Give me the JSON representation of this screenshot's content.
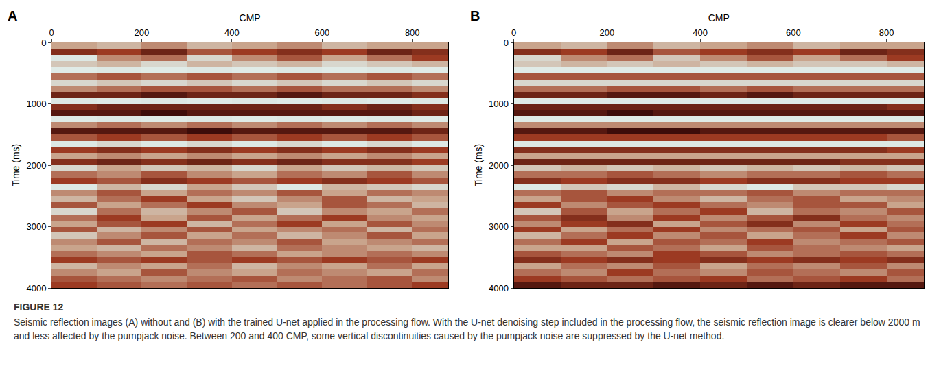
{
  "chart_data": [
    {
      "type": "heatmap",
      "panel": "A",
      "xlabel": "CMP",
      "ylabel": "Time (ms)",
      "xlim": [
        0,
        880
      ],
      "ylim": [
        4000,
        0
      ],
      "xticks": [
        0,
        200,
        400,
        600,
        800
      ],
      "yticks": [
        0,
        1000,
        2000,
        3000,
        4000
      ],
      "zlim": [
        -1,
        1
      ],
      "x": [
        50,
        150,
        250,
        350,
        450,
        550,
        650,
        750,
        850
      ],
      "y": [
        50,
        150,
        250,
        350,
        450,
        550,
        650,
        750,
        850,
        950,
        1050,
        1150,
        1250,
        1350,
        1450,
        1550,
        1650,
        1750,
        1850,
        1950,
        2050,
        2150,
        2250,
        2350,
        2450,
        2550,
        2650,
        2750,
        2850,
        2950,
        3050,
        3150,
        3250,
        3350,
        3450,
        3550,
        3650,
        3750,
        3850,
        3950
      ],
      "z": [
        [
          0.2,
          0.1,
          0.3,
          0.1,
          0.2,
          0.3,
          0.1,
          0.2,
          0.2
        ],
        [
          0.7,
          0.6,
          0.8,
          0.5,
          0.6,
          0.7,
          0.6,
          0.8,
          0.7
        ],
        [
          -0.2,
          0.3,
          0.4,
          -0.1,
          0.3,
          0.5,
          0.2,
          0.4,
          0.6
        ],
        [
          0.0,
          0.1,
          -0.1,
          0.1,
          0.0,
          0.1,
          -0.1,
          0.0,
          0.1
        ],
        [
          -0.3,
          -0.2,
          -0.3,
          -0.2,
          -0.3,
          -0.2,
          -0.3,
          -0.2,
          -0.3
        ],
        [
          0.4,
          0.5,
          0.4,
          0.5,
          0.4,
          0.5,
          0.4,
          0.5,
          0.4
        ],
        [
          -0.1,
          0.0,
          -0.1,
          0.0,
          -0.1,
          0.0,
          -0.1,
          0.0,
          -0.1
        ],
        [
          0.3,
          0.4,
          0.5,
          0.5,
          0.4,
          0.5,
          0.4,
          0.4,
          0.3
        ],
        [
          0.8,
          0.8,
          0.9,
          0.8,
          0.8,
          0.9,
          0.8,
          0.8,
          0.7
        ],
        [
          -0.2,
          -0.3,
          -0.2,
          -0.3,
          -0.2,
          -0.3,
          -0.2,
          -0.3,
          -0.2
        ],
        [
          0.7,
          0.8,
          0.8,
          0.8,
          0.8,
          0.8,
          0.7,
          0.8,
          0.7
        ],
        [
          0.9,
          0.9,
          1.0,
          0.9,
          0.9,
          0.9,
          0.9,
          0.9,
          0.8
        ],
        [
          -0.3,
          -0.2,
          -0.3,
          -0.2,
          -0.3,
          -0.2,
          -0.3,
          -0.2,
          -0.3
        ],
        [
          0.3,
          0.4,
          0.3,
          0.4,
          0.3,
          0.4,
          0.3,
          0.4,
          0.3
        ],
        [
          0.9,
          0.9,
          0.9,
          1.0,
          0.9,
          0.9,
          0.9,
          0.9,
          0.8
        ],
        [
          0.5,
          0.6,
          0.5,
          0.6,
          0.5,
          0.6,
          0.5,
          0.6,
          0.5
        ],
        [
          -0.2,
          -0.1,
          -0.2,
          -0.1,
          -0.2,
          -0.1,
          -0.2,
          -0.1,
          -0.2
        ],
        [
          0.6,
          0.7,
          0.6,
          0.7,
          0.6,
          0.7,
          0.6,
          0.7,
          0.6
        ],
        [
          0.2,
          0.3,
          0.2,
          0.3,
          0.2,
          0.3,
          0.2,
          0.3,
          0.2
        ],
        [
          0.7,
          0.8,
          0.7,
          0.8,
          0.7,
          0.8,
          0.7,
          0.7,
          0.6
        ],
        [
          -0.1,
          0.2,
          0.0,
          0.1,
          -0.1,
          0.2,
          0.0,
          0.1,
          0.0
        ],
        [
          0.4,
          0.3,
          0.5,
          0.3,
          0.2,
          0.4,
          0.3,
          0.5,
          0.3
        ],
        [
          0.6,
          0.5,
          0.7,
          0.6,
          0.5,
          0.6,
          0.7,
          0.6,
          0.5
        ],
        [
          -0.2,
          0.1,
          -0.1,
          0.2,
          0.0,
          -0.2,
          0.1,
          0.0,
          -0.1
        ],
        [
          0.3,
          0.5,
          0.2,
          0.4,
          0.3,
          0.5,
          0.2,
          0.4,
          0.3
        ],
        [
          0.1,
          0.4,
          0.6,
          0.2,
          0.0,
          0.3,
          0.5,
          0.1,
          0.2
        ],
        [
          0.5,
          0.2,
          0.4,
          0.6,
          0.3,
          0.2,
          0.5,
          0.4,
          0.1
        ],
        [
          -0.1,
          0.4,
          0.1,
          0.3,
          0.5,
          0.0,
          0.3,
          0.2,
          0.4
        ],
        [
          0.4,
          0.6,
          0.2,
          0.5,
          0.2,
          0.4,
          0.6,
          0.3,
          0.2
        ],
        [
          0.2,
          0.5,
          0.6,
          0.1,
          0.4,
          0.6,
          0.2,
          0.5,
          0.3
        ],
        [
          0.5,
          0.1,
          0.3,
          0.5,
          0.2,
          0.3,
          0.4,
          0.1,
          0.4
        ],
        [
          0.0,
          0.3,
          0.5,
          0.2,
          0.4,
          0.1,
          0.3,
          0.5,
          0.2
        ],
        [
          0.3,
          0.5,
          0.1,
          0.4,
          0.3,
          0.5,
          0.2,
          0.3,
          0.4
        ],
        [
          0.2,
          0.1,
          0.4,
          0.3,
          0.1,
          0.4,
          0.3,
          0.2,
          0.1
        ],
        [
          0.4,
          0.3,
          0.2,
          0.5,
          0.4,
          0.2,
          0.3,
          0.4,
          0.3
        ],
        [
          0.6,
          0.5,
          0.6,
          0.5,
          0.6,
          0.5,
          0.6,
          0.5,
          0.6
        ],
        [
          0.1,
          0.3,
          0.2,
          0.4,
          0.1,
          0.3,
          0.2,
          0.4,
          0.2
        ],
        [
          0.3,
          0.2,
          0.5,
          0.3,
          0.2,
          0.4,
          0.3,
          0.2,
          0.4
        ],
        [
          0.5,
          0.4,
          0.3,
          0.4,
          0.5,
          0.3,
          0.4,
          0.5,
          0.3
        ],
        [
          0.6,
          0.5,
          0.4,
          0.5,
          0.4,
          0.5,
          0.4,
          0.5,
          0.6
        ]
      ]
    },
    {
      "type": "heatmap",
      "panel": "B",
      "xlabel": "CMP",
      "ylabel": "Time (ms)",
      "xlim": [
        0,
        880
      ],
      "ylim": [
        4000,
        0
      ],
      "xticks": [
        0,
        200,
        400,
        600,
        800
      ],
      "yticks": [
        0,
        1000,
        2000,
        3000,
        4000
      ],
      "zlim": [
        -1,
        1
      ],
      "x": [
        50,
        150,
        250,
        350,
        450,
        550,
        650,
        750,
        850
      ],
      "y": [
        50,
        150,
        250,
        350,
        450,
        550,
        650,
        750,
        850,
        950,
        1050,
        1150,
        1250,
        1350,
        1450,
        1550,
        1650,
        1750,
        1850,
        1950,
        2050,
        2150,
        2250,
        2350,
        2450,
        2550,
        2650,
        2750,
        2850,
        2950,
        3050,
        3150,
        3250,
        3350,
        3450,
        3550,
        3650,
        3750,
        3850,
        3950
      ],
      "z": [
        [
          0.2,
          0.1,
          0.3,
          0.1,
          0.2,
          0.3,
          0.1,
          0.2,
          0.2
        ],
        [
          0.7,
          0.6,
          0.8,
          0.5,
          0.6,
          0.7,
          0.6,
          0.8,
          0.7
        ],
        [
          -0.1,
          0.3,
          0.4,
          0.0,
          0.3,
          0.5,
          0.2,
          0.4,
          0.6
        ],
        [
          0.0,
          0.1,
          0.0,
          0.1,
          0.0,
          0.1,
          0.0,
          0.0,
          0.1
        ],
        [
          -0.3,
          -0.3,
          -0.3,
          -0.3,
          -0.3,
          -0.3,
          -0.3,
          -0.3,
          -0.3
        ],
        [
          0.5,
          0.5,
          0.5,
          0.5,
          0.5,
          0.5,
          0.5,
          0.5,
          0.5
        ],
        [
          -0.1,
          -0.1,
          -0.1,
          -0.1,
          -0.1,
          -0.1,
          -0.1,
          -0.1,
          -0.1
        ],
        [
          0.4,
          0.4,
          0.5,
          0.5,
          0.4,
          0.5,
          0.4,
          0.4,
          0.4
        ],
        [
          0.8,
          0.8,
          0.9,
          0.9,
          0.8,
          0.9,
          0.8,
          0.8,
          0.8
        ],
        [
          -0.3,
          -0.3,
          -0.3,
          -0.3,
          -0.3,
          -0.3,
          -0.3,
          -0.3,
          -0.3
        ],
        [
          0.8,
          0.8,
          0.8,
          0.8,
          0.8,
          0.8,
          0.8,
          0.8,
          0.7
        ],
        [
          0.9,
          0.9,
          1.0,
          0.9,
          0.9,
          0.9,
          0.9,
          0.9,
          0.9
        ],
        [
          -0.3,
          -0.3,
          -0.3,
          -0.3,
          -0.3,
          -0.3,
          -0.3,
          -0.3,
          -0.3
        ],
        [
          0.3,
          0.3,
          0.3,
          0.3,
          0.3,
          0.3,
          0.3,
          0.3,
          0.3
        ],
        [
          0.9,
          0.9,
          1.0,
          1.0,
          0.9,
          0.9,
          0.9,
          0.9,
          0.9
        ],
        [
          0.6,
          0.6,
          0.6,
          0.6,
          0.6,
          0.6,
          0.6,
          0.6,
          0.5
        ],
        [
          -0.2,
          -0.2,
          -0.2,
          -0.2,
          -0.2,
          -0.2,
          -0.2,
          -0.2,
          -0.2
        ],
        [
          0.7,
          0.7,
          0.7,
          0.7,
          0.7,
          0.7,
          0.7,
          0.7,
          0.6
        ],
        [
          0.2,
          0.2,
          0.2,
          0.2,
          0.2,
          0.2,
          0.2,
          0.2,
          0.2
        ],
        [
          0.8,
          0.8,
          0.8,
          0.8,
          0.8,
          0.8,
          0.8,
          0.7,
          0.7
        ],
        [
          0.0,
          0.1,
          0.0,
          0.1,
          0.0,
          0.1,
          0.0,
          0.1,
          0.0
        ],
        [
          0.4,
          0.4,
          0.5,
          0.4,
          0.3,
          0.4,
          0.4,
          0.5,
          0.4
        ],
        [
          0.7,
          0.6,
          0.7,
          0.7,
          0.6,
          0.7,
          0.7,
          0.6,
          0.6
        ],
        [
          -0.2,
          0.0,
          -0.1,
          0.1,
          -0.1,
          -0.2,
          0.0,
          0.0,
          -0.1
        ],
        [
          0.4,
          0.5,
          0.3,
          0.4,
          0.4,
          0.5,
          0.3,
          0.4,
          0.4
        ],
        [
          0.2,
          0.5,
          0.6,
          0.3,
          0.1,
          0.4,
          0.5,
          0.2,
          0.3
        ],
        [
          0.6,
          0.3,
          0.5,
          0.6,
          0.4,
          0.3,
          0.5,
          0.5,
          0.2
        ],
        [
          0.0,
          0.5,
          0.2,
          0.4,
          0.6,
          0.1,
          0.4,
          0.3,
          0.5
        ],
        [
          0.5,
          0.7,
          0.3,
          0.6,
          0.3,
          0.5,
          0.7,
          0.4,
          0.3
        ],
        [
          0.3,
          0.6,
          0.7,
          0.2,
          0.5,
          0.7,
          0.3,
          0.6,
          0.4
        ],
        [
          0.6,
          0.2,
          0.4,
          0.6,
          0.3,
          0.4,
          0.5,
          0.2,
          0.5
        ],
        [
          0.1,
          0.4,
          0.6,
          0.3,
          0.5,
          0.2,
          0.4,
          0.6,
          0.3
        ],
        [
          0.4,
          0.6,
          0.2,
          0.5,
          0.4,
          0.6,
          0.3,
          0.4,
          0.5
        ],
        [
          0.2,
          0.2,
          0.5,
          0.4,
          0.2,
          0.5,
          0.4,
          0.3,
          0.2
        ],
        [
          0.5,
          0.4,
          0.3,
          0.6,
          0.5,
          0.3,
          0.4,
          0.5,
          0.4
        ],
        [
          0.7,
          0.6,
          0.7,
          0.6,
          0.7,
          0.6,
          0.7,
          0.6,
          0.7
        ],
        [
          0.2,
          0.4,
          0.3,
          0.5,
          0.2,
          0.4,
          0.3,
          0.5,
          0.3
        ],
        [
          0.4,
          0.3,
          0.6,
          0.4,
          0.3,
          0.5,
          0.4,
          0.3,
          0.5
        ],
        [
          0.6,
          0.5,
          0.4,
          0.5,
          0.6,
          0.4,
          0.5,
          0.6,
          0.4
        ],
        [
          0.9,
          0.8,
          0.8,
          0.9,
          0.8,
          0.9,
          0.8,
          0.9,
          0.9
        ]
      ]
    }
  ],
  "caption": {
    "label": "FIGURE 12",
    "text": "Seismic reflection images (A) without and (B) with the trained U-net applied in the processing flow. With the U-net denoising step included in the processing flow, the seismic reflection image is clearer below 2000 m and less affected by the pumpjack noise. Between 200 and 400 CMP, some vertical discontinuities caused by the pumpjack noise are suppressed by the U-net method."
  }
}
